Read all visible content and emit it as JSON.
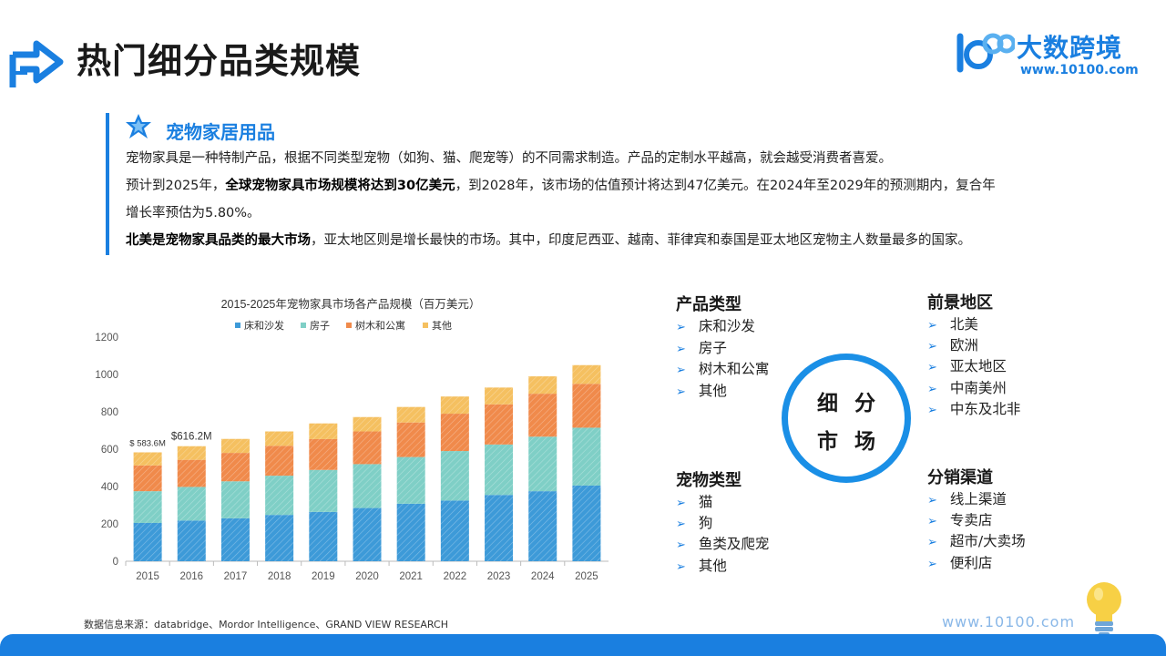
{
  "page": {
    "title": "热门细分品类规模"
  },
  "logo": {
    "brand": "大数跨境",
    "url": "www.10100.com"
  },
  "section": {
    "title": "宠物家居用品",
    "p1": "宠物家具是一种特制产品，根据不同类型宠物（如狗、猫、爬宠等）的不同需求制造。产品的定制水平越高，就会越受消费者喜爱。",
    "p2_a": "预计到2025年，",
    "p2_b": "全球宠物家具市场规模将达到30亿美元",
    "p2_c": "，到2028年，该市场的估值预计将达到47亿美元。在2024年至2029年的预测期内，复合年",
    "p3": "增长率预估为5.80%。",
    "p4_a": "北美是宠物家具品类的最大市场",
    "p4_b": "，亚太地区则是增长最快的市场。其中，印度尼西亚、越南、菲律宾和泰国是亚太地区宠物主人数量最多的国家。"
  },
  "chart_data": {
    "type": "bar",
    "stacked": true,
    "title": "2015-2025年宠物家具市场各产品规模（百万美元）",
    "categories": [
      "2015",
      "2016",
      "2017",
      "2018",
      "2019",
      "2020",
      "2021",
      "2022",
      "2023",
      "2024",
      "2025"
    ],
    "series": [
      {
        "name": "床和沙发",
        "color": "#3d9ad8",
        "values": [
          205,
          218,
          230,
          248,
          264,
          285,
          308,
          325,
          355,
          375,
          405
        ]
      },
      {
        "name": "房子",
        "color": "#7fcfc6",
        "values": [
          170,
          180,
          198,
          210,
          225,
          235,
          250,
          265,
          270,
          292,
          310
        ]
      },
      {
        "name": "树木和公寓",
        "color": "#f08a4b",
        "values": [
          138,
          145,
          152,
          160,
          165,
          175,
          185,
          200,
          215,
          230,
          235
        ]
      },
      {
        "name": "其他",
        "color": "#f5c060",
        "values": [
          70,
          73,
          75,
          77,
          84,
          77,
          83,
          92,
          90,
          93,
          100
        ]
      }
    ],
    "annotations": [
      {
        "category": "2015",
        "text": "$ 583.6M"
      },
      {
        "category": "2016",
        "text": "$616.2M"
      }
    ],
    "ylim": [
      0,
      1200
    ],
    "yticks": [
      0,
      200,
      400,
      600,
      800,
      1000,
      1200
    ],
    "legend": "top",
    "grid": false
  },
  "segments": {
    "center_line1": "细分",
    "center_line2": "市场",
    "product": {
      "head": "产品类型",
      "items": [
        "床和沙发",
        "房子",
        "树木和公寓",
        "其他"
      ]
    },
    "region": {
      "head": "前景地区",
      "items": [
        "北美",
        "欧洲",
        "亚太地区",
        "中南美州",
        "中东及北非"
      ]
    },
    "pet": {
      "head": "宠物类型",
      "items": [
        "猫",
        "狗",
        "鱼类及爬宠",
        "其他"
      ]
    },
    "channel": {
      "head": "分销渠道",
      "items": [
        "线上渠道",
        "专卖店",
        "超市/大卖场",
        "便利店"
      ]
    },
    "arrow": "➢"
  },
  "footer": {
    "source": "数据信息来源：databridge、Mordor Intelligence、GRAND VIEW RESEARCH",
    "url": "www.10100.com"
  }
}
